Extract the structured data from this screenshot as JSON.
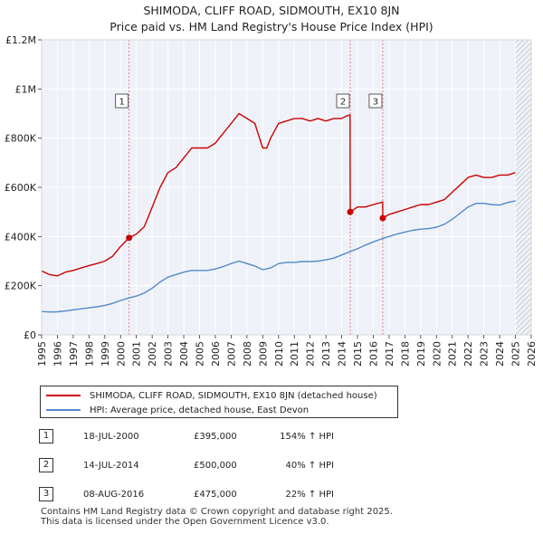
{
  "chart_data": {
    "type": "line",
    "title": "SHIMODA, CLIFF ROAD, SIDMOUTH, EX10 8JN",
    "subtitle": "Price paid vs. HM Land Registry's House Price Index (HPI)",
    "xlabel": "",
    "ylabel": "",
    "xlim": [
      1995,
      2026
    ],
    "ylim": [
      0,
      1200000
    ],
    "x_ticks": [
      1995,
      1996,
      1997,
      1998,
      1999,
      2000,
      2001,
      2002,
      2003,
      2004,
      2005,
      2006,
      2007,
      2008,
      2009,
      2010,
      2011,
      2012,
      2013,
      2014,
      2015,
      2016,
      2017,
      2018,
      2019,
      2020,
      2021,
      2022,
      2023,
      2024,
      2025,
      2026
    ],
    "y_ticks": [
      {
        "value": 0,
        "label": "£0"
      },
      {
        "value": 200000,
        "label": "£200K"
      },
      {
        "value": 400000,
        "label": "£400K"
      },
      {
        "value": 600000,
        "label": "£600K"
      },
      {
        "value": 800000,
        "label": "£800K"
      },
      {
        "value": 1000000,
        "label": "£1M"
      },
      {
        "value": 1200000,
        "label": "£1.2M"
      }
    ],
    "grid": true,
    "future_hatch_from": 2025.0,
    "series": [
      {
        "name": "SHIMODA, CLIFF ROAD, SIDMOUTH, EX10 8JN (detached house)",
        "color": "#cc0000",
        "x": [
          1995.0,
          1995.5,
          1996.0,
          1996.5,
          1997.0,
          1997.5,
          1998.0,
          1998.5,
          1999.0,
          1999.5,
          2000.0,
          2000.54,
          2001.0,
          2001.5,
          2002.0,
          2002.5,
          2003.0,
          2003.5,
          2004.0,
          2004.5,
          2005.0,
          2005.5,
          2006.0,
          2006.5,
          2007.0,
          2007.5,
          2008.0,
          2008.5,
          2009.0,
          2009.25,
          2009.5,
          2010.0,
          2010.5,
          2011.0,
          2011.5,
          2012.0,
          2012.5,
          2013.0,
          2013.5,
          2014.0,
          2014.3,
          2014.53,
          2014.54,
          2015.0,
          2015.5,
          2016.0,
          2016.59,
          2016.6,
          2017.0,
          2017.5,
          2018.0,
          2018.5,
          2019.0,
          2019.5,
          2020.0,
          2020.5,
          2021.0,
          2021.5,
          2022.0,
          2022.5,
          2023.0,
          2023.5,
          2024.0,
          2024.5,
          2025.0
        ],
        "values": [
          260000,
          245000,
          240000,
          255000,
          262000,
          272000,
          282000,
          290000,
          300000,
          320000,
          360000,
          395000,
          410000,
          440000,
          520000,
          600000,
          660000,
          680000,
          720000,
          760000,
          760000,
          760000,
          780000,
          820000,
          860000,
          900000,
          880000,
          860000,
          760000,
          760000,
          800000,
          860000,
          870000,
          880000,
          880000,
          870000,
          880000,
          870000,
          880000,
          880000,
          890000,
          895000,
          500000,
          520000,
          520000,
          530000,
          540000,
          475000,
          490000,
          500000,
          510000,
          520000,
          530000,
          530000,
          540000,
          550000,
          580000,
          610000,
          640000,
          650000,
          640000,
          640000,
          650000,
          650000,
          660000
        ]
      },
      {
        "name": "HPI: Average price, detached house, East Devon",
        "color": "#5588cc",
        "x": [
          1995.0,
          1995.5,
          1996.0,
          1996.5,
          1997.0,
          1997.5,
          1998.0,
          1998.5,
          1999.0,
          1999.5,
          2000.0,
          2000.5,
          2001.0,
          2001.5,
          2002.0,
          2002.5,
          2003.0,
          2003.5,
          2004.0,
          2004.5,
          2005.0,
          2005.5,
          2006.0,
          2006.5,
          2007.0,
          2007.5,
          2008.0,
          2008.5,
          2009.0,
          2009.5,
          2010.0,
          2010.5,
          2011.0,
          2011.5,
          2012.0,
          2012.5,
          2013.0,
          2013.5,
          2014.0,
          2014.5,
          2015.0,
          2015.5,
          2016.0,
          2016.5,
          2017.0,
          2017.5,
          2018.0,
          2018.5,
          2019.0,
          2019.5,
          2020.0,
          2020.5,
          2021.0,
          2021.5,
          2022.0,
          2022.5,
          2023.0,
          2023.5,
          2024.0,
          2024.5,
          2025.0
        ],
        "values": [
          95000,
          93000,
          94000,
          97000,
          102000,
          106000,
          110000,
          114000,
          120000,
          128000,
          140000,
          150000,
          158000,
          170000,
          190000,
          215000,
          235000,
          245000,
          255000,
          262000,
          262000,
          262000,
          268000,
          278000,
          290000,
          300000,
          290000,
          280000,
          265000,
          272000,
          290000,
          295000,
          295000,
          298000,
          298000,
          300000,
          305000,
          312000,
          325000,
          338000,
          350000,
          365000,
          378000,
          390000,
          400000,
          410000,
          418000,
          425000,
          430000,
          432000,
          438000,
          450000,
          470000,
          495000,
          520000,
          535000,
          535000,
          530000,
          528000,
          538000,
          545000
        ]
      }
    ],
    "sales": [
      {
        "num": "1",
        "x": 2000.54,
        "price": 395000,
        "date": "18-JUL-2000",
        "price_label": "£395,000",
        "hpi": "154% ↑ HPI"
      },
      {
        "num": "2",
        "x": 2014.54,
        "price": 500000,
        "date": "14-JUL-2014",
        "price_label": "£500,000",
        "hpi": "40% ↑ HPI"
      },
      {
        "num": "3",
        "x": 2016.6,
        "price": 475000,
        "date": "08-AUG-2016",
        "price_label": "£475,000",
        "hpi": "22% ↑ HPI"
      }
    ]
  },
  "legend": {
    "items": [
      {
        "label": "SHIMODA, CLIFF ROAD, SIDMOUTH, EX10 8JN (detached house)",
        "color": "#cc0000"
      },
      {
        "label": "HPI: Average price, detached house, East Devon",
        "color": "#5588cc"
      }
    ]
  },
  "footer": {
    "line1": "Contains HM Land Registry data © Crown copyright and database right 2025.",
    "line2": "This data is licensed under the Open Government Licence v3.0."
  }
}
